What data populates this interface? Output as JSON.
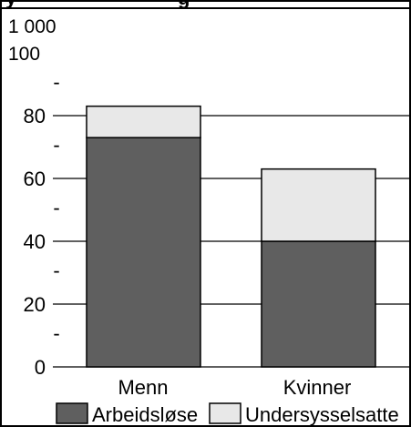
{
  "chart_data": {
    "type": "bar",
    "stacked": true,
    "title": "y",
    "title_tail": "g",
    "unit_label_line1": "1 000",
    "unit_label_line2": "100",
    "categories": [
      "Menn",
      "Kvinner"
    ],
    "series": [
      {
        "name": "Arbeidsløse",
        "values": [
          73,
          40
        ],
        "color": "#5f5f5f"
      },
      {
        "name": "Undersysselsatte",
        "values": [
          10,
          23
        ],
        "color": "#e8e8e8"
      }
    ],
    "ylim": [
      0,
      100
    ],
    "yticks": [
      0,
      20,
      40,
      60,
      80
    ],
    "ytick_labels": [
      "0",
      "20",
      "40",
      "60",
      "80"
    ],
    "minor_tick_marks": [
      10,
      30,
      50,
      70,
      90
    ],
    "minor_tick_label": "-",
    "grid": true,
    "legend_position": "bottom"
  }
}
